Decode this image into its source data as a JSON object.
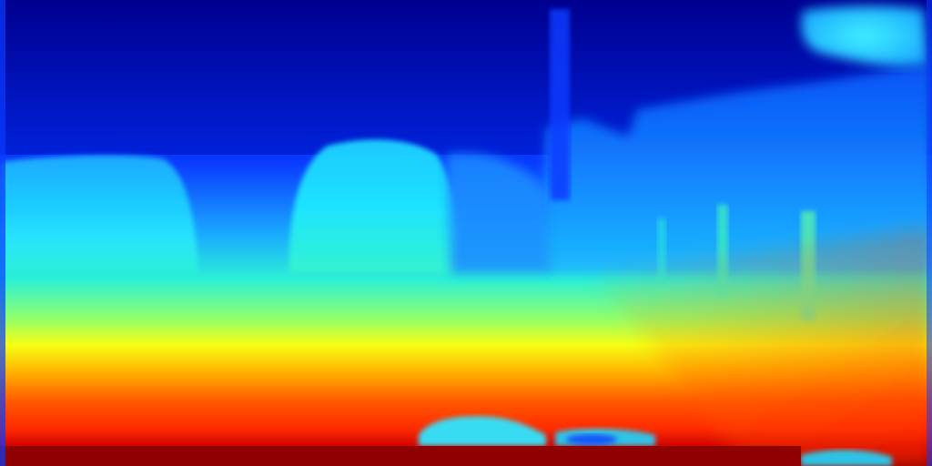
{
  "image": {
    "kind": "depth-map",
    "colormap": "jet",
    "colors": {
      "far": "#00008f",
      "mid_far": "#0a3bff",
      "mid": "#1fd7ff",
      "near_mid": "#f6ff14",
      "near": "#ff2a00",
      "nearest": "#8f0000"
    }
  }
}
